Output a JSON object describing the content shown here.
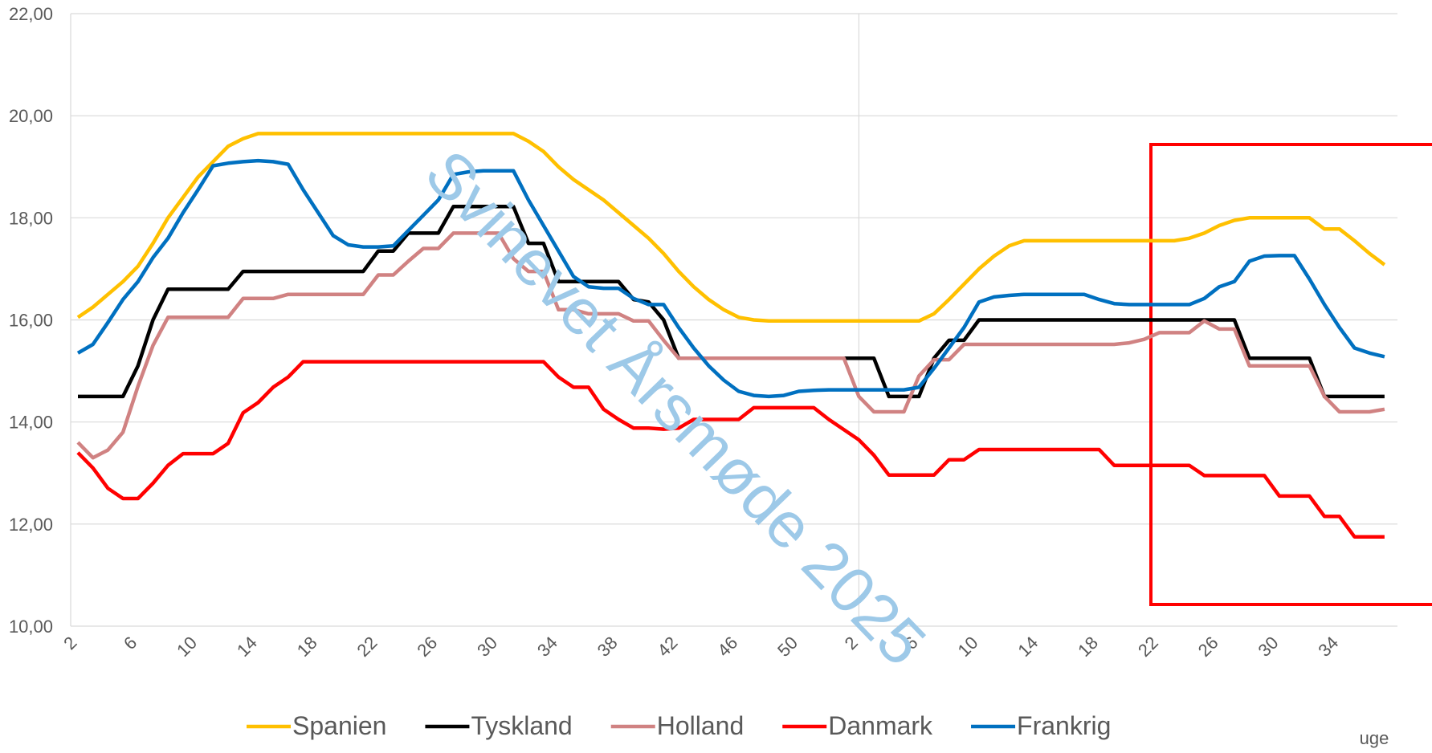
{
  "chart_data": {
    "type": "line",
    "x_label": "uge",
    "watermark": "Svinevet Årsmøde 2025",
    "categories": [
      "2",
      null,
      null,
      null,
      "6",
      null,
      null,
      null,
      "10",
      null,
      null,
      null,
      "14",
      null,
      null,
      null,
      "18",
      null,
      null,
      null,
      "22",
      null,
      null,
      null,
      "26",
      null,
      null,
      null,
      "30",
      null,
      null,
      null,
      "34",
      null,
      null,
      null,
      "38",
      null,
      null,
      null,
      "42",
      null,
      null,
      null,
      "46",
      null,
      null,
      null,
      "50",
      null,
      null,
      null,
      "2",
      null,
      null,
      null,
      "6",
      null,
      null,
      null,
      "10",
      null,
      null,
      null,
      "14",
      null,
      null,
      null,
      "18",
      null,
      null,
      null,
      "22",
      null,
      null,
      null,
      "26",
      null,
      null,
      null,
      "30",
      null,
      null,
      null,
      "34",
      null,
      null,
      null
    ],
    "ylim": [
      10,
      22
    ],
    "yticks": [
      {
        "value": 10,
        "label": "10,00"
      },
      {
        "value": 12,
        "label": "12,00"
      },
      {
        "value": 14,
        "label": "14,00"
      },
      {
        "value": 16,
        "label": "16,00"
      },
      {
        "value": 18,
        "label": "18,00"
      },
      {
        "value": 20,
        "label": "20,00"
      },
      {
        "value": 22,
        "label": "22,00"
      }
    ],
    "grid": true,
    "legend": "bottom",
    "series": [
      {
        "name": "Spanien",
        "color": "#ffc000",
        "values": [
          16.05,
          16.25,
          16.5,
          16.75,
          17.05,
          17.5,
          18.0,
          18.4,
          18.8,
          19.1,
          19.4,
          19.55,
          19.65,
          19.65,
          19.65,
          19.65,
          19.65,
          19.65,
          19.65,
          19.65,
          19.65,
          19.65,
          19.65,
          19.65,
          19.65,
          19.65,
          19.65,
          19.65,
          19.65,
          19.65,
          19.5,
          19.3,
          19.0,
          18.75,
          18.55,
          18.35,
          18.1,
          17.85,
          17.6,
          17.3,
          16.95,
          16.65,
          16.4,
          16.2,
          16.05,
          16.0,
          15.98,
          15.98,
          15.98,
          15.98,
          15.98,
          15.98,
          15.98,
          15.98,
          15.98,
          15.98,
          15.98,
          16.12,
          16.4,
          16.7,
          17.0,
          17.25,
          17.45,
          17.55,
          17.55,
          17.55,
          17.55,
          17.55,
          17.55,
          17.55,
          17.55,
          17.55,
          17.55,
          17.55,
          17.6,
          17.7,
          17.85,
          17.95,
          18.0,
          18.0,
          18.0,
          18.0,
          18.0,
          17.78,
          17.78,
          17.55,
          17.3,
          17.08
        ]
      },
      {
        "name": "Tyskland",
        "color": "#000000",
        "values": [
          14.5,
          14.5,
          14.5,
          14.5,
          15.1,
          16.0,
          16.6,
          16.6,
          16.6,
          16.6,
          16.6,
          16.95,
          16.95,
          16.95,
          16.95,
          16.95,
          16.95,
          16.95,
          16.95,
          16.95,
          17.35,
          17.35,
          17.7,
          17.7,
          17.7,
          18.22,
          18.22,
          18.22,
          18.22,
          18.22,
          17.5,
          17.5,
          16.75,
          16.75,
          16.75,
          16.75,
          16.75,
          16.4,
          16.35,
          16.0,
          15.25,
          15.25,
          15.25,
          15.25,
          15.25,
          15.25,
          15.25,
          15.25,
          15.25,
          15.25,
          15.25,
          15.25,
          15.25,
          15.25,
          14.5,
          14.5,
          14.5,
          15.25,
          15.6,
          15.6,
          16.0,
          16.0,
          16.0,
          16.0,
          16.0,
          16.0,
          16.0,
          16.0,
          16.0,
          16.0,
          16.0,
          16.0,
          16.0,
          16.0,
          16.0,
          16.0,
          16.0,
          16.0,
          15.25,
          15.25,
          15.25,
          15.25,
          15.25,
          14.5,
          14.5,
          14.5,
          14.5,
          14.5
        ]
      },
      {
        "name": "Holland",
        "color": "#d08282",
        "values": [
          13.6,
          13.3,
          13.45,
          13.8,
          14.7,
          15.5,
          16.05,
          16.05,
          16.05,
          16.05,
          16.05,
          16.42,
          16.42,
          16.42,
          16.5,
          16.5,
          16.5,
          16.5,
          16.5,
          16.5,
          16.88,
          16.88,
          17.15,
          17.4,
          17.4,
          17.7,
          17.7,
          17.7,
          17.7,
          17.2,
          16.95,
          16.95,
          16.2,
          16.2,
          16.12,
          16.12,
          16.12,
          15.98,
          15.98,
          15.6,
          15.25,
          15.25,
          15.25,
          15.25,
          15.25,
          15.25,
          15.25,
          15.25,
          15.25,
          15.25,
          15.25,
          15.25,
          14.5,
          14.2,
          14.2,
          14.2,
          14.9,
          15.22,
          15.22,
          15.52,
          15.52,
          15.52,
          15.52,
          15.52,
          15.52,
          15.52,
          15.52,
          15.52,
          15.52,
          15.52,
          15.55,
          15.62,
          15.75,
          15.75,
          15.75,
          15.98,
          15.82,
          15.82,
          15.1,
          15.1,
          15.1,
          15.1,
          15.1,
          14.5,
          14.2,
          14.2,
          14.2,
          14.25
        ]
      },
      {
        "name": "Danmark",
        "color": "#ff0000",
        "values": [
          13.4,
          13.1,
          12.7,
          12.5,
          12.5,
          12.8,
          13.15,
          13.38,
          13.38,
          13.38,
          13.58,
          14.18,
          14.38,
          14.68,
          14.88,
          15.18,
          15.18,
          15.18,
          15.18,
          15.18,
          15.18,
          15.18,
          15.18,
          15.18,
          15.18,
          15.18,
          15.18,
          15.18,
          15.18,
          15.18,
          15.18,
          15.18,
          14.88,
          14.68,
          14.68,
          14.25,
          14.05,
          13.88,
          13.88,
          13.86,
          13.88,
          14.05,
          14.05,
          14.05,
          14.05,
          14.28,
          14.28,
          14.28,
          14.28,
          14.28,
          14.05,
          13.85,
          13.65,
          13.35,
          12.96,
          12.96,
          12.96,
          12.96,
          13.26,
          13.26,
          13.46,
          13.46,
          13.46,
          13.46,
          13.46,
          13.46,
          13.46,
          13.46,
          13.46,
          13.15,
          13.15,
          13.15,
          13.15,
          13.15,
          13.15,
          12.95,
          12.95,
          12.95,
          12.95,
          12.95,
          12.55,
          12.55,
          12.55,
          12.15,
          12.15,
          11.75,
          11.75,
          11.75
        ]
      },
      {
        "name": "Frankrig",
        "color": "#0070c0",
        "values": [
          15.35,
          15.52,
          15.95,
          16.4,
          16.75,
          17.22,
          17.6,
          18.1,
          18.55,
          19.02,
          19.07,
          19.1,
          19.12,
          19.1,
          19.05,
          18.55,
          18.1,
          17.65,
          17.47,
          17.43,
          17.43,
          17.45,
          17.75,
          18.05,
          18.35,
          18.85,
          18.9,
          18.92,
          18.92,
          18.92,
          18.35,
          17.85,
          17.35,
          16.85,
          16.65,
          16.62,
          16.62,
          16.42,
          16.3,
          16.3,
          15.85,
          15.45,
          15.1,
          14.82,
          14.6,
          14.52,
          14.5,
          14.52,
          14.6,
          14.62,
          14.63,
          14.63,
          14.63,
          14.63,
          14.63,
          14.63,
          14.68,
          15.05,
          15.45,
          15.85,
          16.35,
          16.45,
          16.48,
          16.5,
          16.5,
          16.5,
          16.5,
          16.5,
          16.4,
          16.32,
          16.3,
          16.3,
          16.3,
          16.3,
          16.3,
          16.42,
          16.65,
          16.75,
          17.15,
          17.25,
          17.26,
          17.26,
          16.8,
          16.3,
          15.85,
          15.45,
          15.35,
          15.28
        ]
      }
    ]
  }
}
